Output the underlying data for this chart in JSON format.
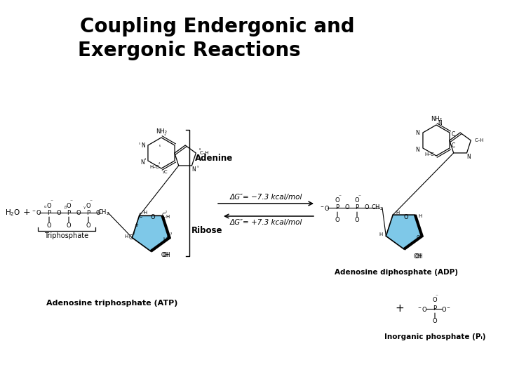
{
  "title_line1": "Coupling Endergonic and",
  "title_line2": "Exergonic Reactions",
  "title_fontsize": 20,
  "bg_color": "#ffffff",
  "arrow_forward_dg": "ΔG″= −7.3 kcal/mol",
  "arrow_reverse_dg": "ΔG″= +7.3 kcal/mol",
  "label_adenine": "Adenine",
  "label_ribose": "Ribose",
  "label_atp": "Adenosine triphosphate (ATP)",
  "label_adp": "Adenosine diphosphate (ADP)",
  "label_pi": "Inorganic phosphate (Pᵢ)",
  "label_triphosphate": "Triphosphate",
  "label_h2o": "H₂O",
  "ribose_color": "#5ab4e0",
  "ribose_dark": "#1a6fa8"
}
